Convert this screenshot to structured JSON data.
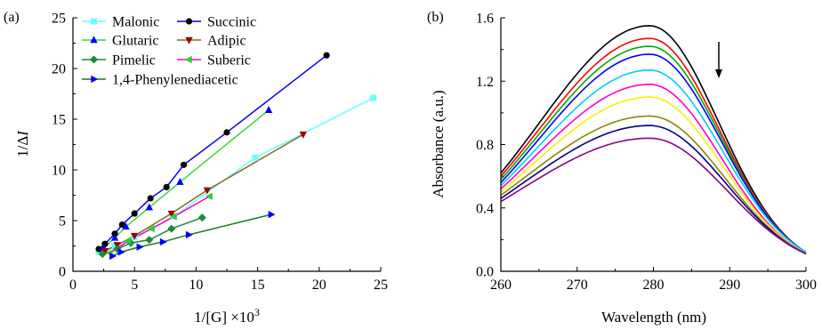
{
  "chart_data": [
    {
      "panel_label": "(a)",
      "type": "line",
      "xlabel": "1/[G] ×10",
      "xlabel_sup": "3",
      "ylabel": "1/Δ",
      "ylabel_italic": "I",
      "xlim": [
        0,
        25
      ],
      "ylim": [
        0,
        25
      ],
      "xticks": [
        0,
        5,
        10,
        15,
        20,
        25
      ],
      "yticks": [
        0,
        5,
        10,
        15,
        20,
        25
      ],
      "grid": false,
      "legend": "top-left, inside plot",
      "series": [
        {
          "name": "Malonic",
          "color": "#66ffff",
          "marker": "square",
          "x": [
            2.1,
            3.4,
            5.0,
            8.2,
            14.8,
            24.4
          ],
          "y": [
            1.9,
            2.5,
            3.4,
            5.4,
            11.2,
            17.1
          ]
        },
        {
          "name": "Succinic",
          "color": "#000000",
          "line_color": "#0000ff",
          "marker": "circle",
          "x": [
            2.1,
            2.6,
            3.4,
            4.0,
            5.0,
            6.3,
            7.6,
            9.0,
            12.5,
            20.6
          ],
          "y": [
            2.2,
            2.7,
            3.7,
            4.6,
            5.7,
            7.2,
            8.3,
            10.5,
            13.7,
            21.3
          ]
        },
        {
          "name": "Glutaric",
          "color": "#0000ff",
          "line_color": "#33dd33",
          "marker": "triangle-up",
          "x": [
            2.5,
            3.4,
            4.3,
            6.2,
            8.7,
            15.9
          ],
          "y": [
            2.3,
            3.3,
            4.4,
            6.3,
            8.8,
            15.9
          ]
        },
        {
          "name": "Adipic",
          "color": "#990000",
          "line_color": "#886622",
          "marker": "triangle-down",
          "x": [
            2.6,
            3.6,
            5.0,
            8.0,
            10.9,
            18.7
          ],
          "y": [
            2.0,
            2.6,
            3.5,
            5.7,
            8.0,
            13.5
          ]
        },
        {
          "name": "Pimelic",
          "color": "#1a8a3a",
          "marker": "diamond",
          "x": [
            2.4,
            3.6,
            4.7,
            6.2,
            8.0,
            10.5
          ],
          "y": [
            1.7,
            2.2,
            2.8,
            3.1,
            4.2,
            5.3
          ]
        },
        {
          "name": "Suberic",
          "color": "#33cc33",
          "line_color": "#ff00cc",
          "marker": "triangle-left",
          "x": [
            3.0,
            4.5,
            6.4,
            8.2,
            11.1
          ],
          "y": [
            1.8,
            3.0,
            4.2,
            5.4,
            7.4
          ]
        },
        {
          "name": "1,4-Phenylenediacetic",
          "color": "#0000ff",
          "line_color": "#1a7a1a",
          "marker": "triangle-right",
          "x": [
            3.2,
            3.9,
            5.4,
            7.3,
            9.4,
            16.1
          ],
          "y": [
            1.5,
            1.9,
            2.4,
            2.9,
            3.6,
            5.6
          ]
        }
      ]
    },
    {
      "panel_label": "(b)",
      "type": "line",
      "xlabel": "Wavelength (nm)",
      "ylabel": "Absorbance (a.u.)",
      "xlim": [
        260,
        300
      ],
      "ylim": [
        0.0,
        1.6
      ],
      "xticks": [
        260,
        270,
        280,
        290,
        300
      ],
      "yticks": [
        "0.0",
        "0.4",
        "0.8",
        "1.2",
        "1.6"
      ],
      "grid": false,
      "annotation": "downward arrow near 288 nm",
      "peak_nm": 279.5,
      "series": [
        {
          "color": "#000000",
          "y260": 0.62,
          "peak": 1.55,
          "y300": 0.12
        },
        {
          "color": "#ff0000",
          "y260": 0.6,
          "peak": 1.47,
          "y300": 0.12
        },
        {
          "color": "#00aa00",
          "y260": 0.58,
          "peak": 1.42,
          "y300": 0.12
        },
        {
          "color": "#0000ff",
          "y260": 0.56,
          "peak": 1.37,
          "y300": 0.12
        },
        {
          "color": "#00ccff",
          "y260": 0.54,
          "peak": 1.27,
          "y300": 0.12
        },
        {
          "color": "#ff00cc",
          "y260": 0.52,
          "peak": 1.18,
          "y300": 0.11
        },
        {
          "color": "#ffee00",
          "y260": 0.5,
          "peak": 1.1,
          "y300": 0.11
        },
        {
          "color": "#888800",
          "y260": 0.48,
          "peak": 0.98,
          "y300": 0.11
        },
        {
          "color": "#000088",
          "y260": 0.46,
          "peak": 0.92,
          "y300": 0.11
        },
        {
          "color": "#880088",
          "y260": 0.44,
          "peak": 0.84,
          "y300": 0.11
        }
      ]
    }
  ]
}
